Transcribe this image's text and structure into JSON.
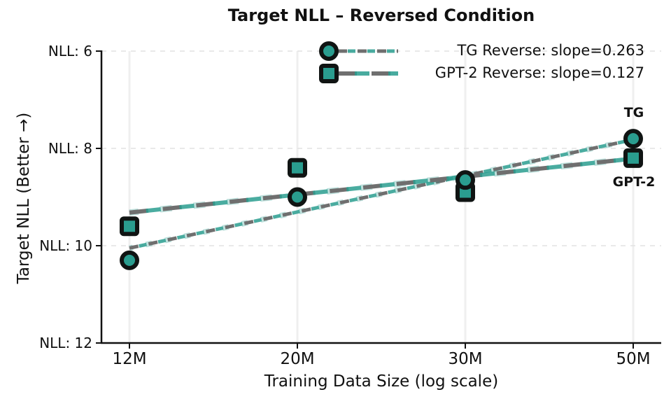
{
  "figure": {
    "background": "#ffffff"
  },
  "chart_data": {
    "type": "scatter",
    "title": "Target NLL – Reversed Condition",
    "xlabel": "Training Data Size (log scale)",
    "ylabel": "Target NLL (Better →)",
    "x_tick_labels": [
      "12M",
      "20M",
      "30M",
      "50M"
    ],
    "y_tick_labels": [
      "NLL: 6",
      "NLL: 8",
      "NLL: 10",
      "NLL: 12"
    ],
    "y_tick_values": [
      6,
      8,
      10,
      12
    ],
    "ylim": [
      6,
      12
    ],
    "y_axis_inverted": true,
    "grid": true,
    "legend_position": "upper center, frameless",
    "series": [
      {
        "name": "TG Reverse: slope=0.263",
        "slope": 0.263,
        "marker": "circle",
        "annotation": "TG",
        "x": [
          "12M",
          "20M",
          "30M",
          "50M"
        ],
        "values": [
          10.3,
          9.0,
          8.65,
          7.8
        ],
        "trend": {
          "start_value": 10.05,
          "end_value": 7.82
        },
        "dash_style": "short"
      },
      {
        "name": "GPT-2 Reverse: slope=0.127",
        "slope": 0.127,
        "marker": "square",
        "annotation": "GPT-2",
        "x": [
          "12M",
          "20M",
          "30M",
          "50M"
        ],
        "values": [
          9.6,
          8.4,
          8.9,
          8.2
        ],
        "trend": {
          "start_value": 9.32,
          "end_value": 8.21
        },
        "dash_style": "long"
      }
    ],
    "colors": {
      "marker_fill": "#2a9d8f",
      "marker_edge": "#101413",
      "dash_gray": "#6f6f6f",
      "dash_teal": "#2a9d8f",
      "grid": "#e2e2e2",
      "vertical_grid": "#efefef",
      "axis": "#111111",
      "text": "#111111"
    }
  }
}
